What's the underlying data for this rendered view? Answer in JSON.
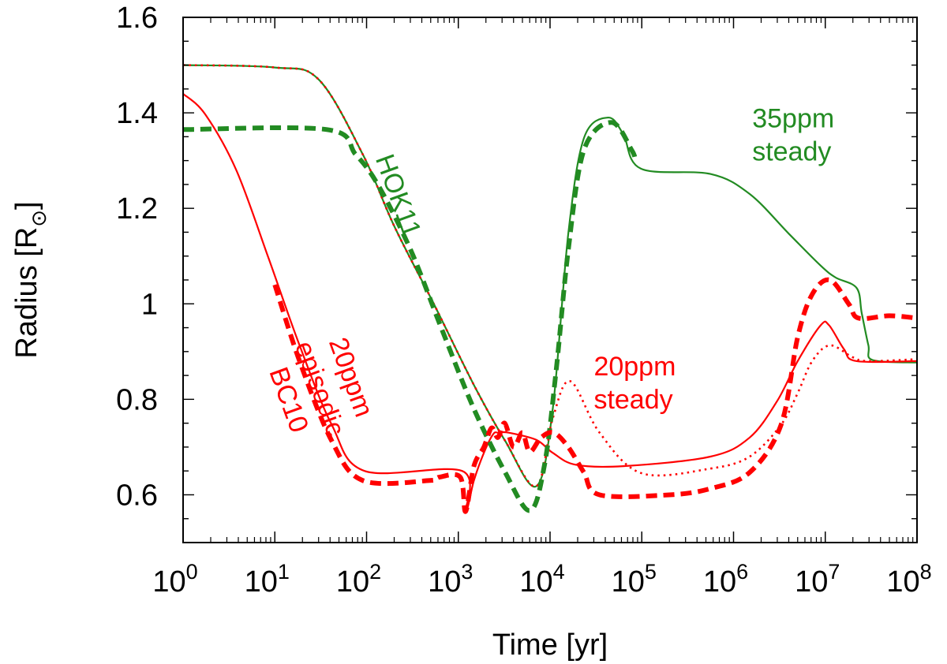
{
  "chart_data": {
    "type": "line",
    "title": "",
    "xlabel": "Time [yr]",
    "ylabel": "Radius [R",
    "ylabel_symbol": "⊙",
    "ylabel_close": "]",
    "xscale": "log",
    "xlim": [
      1,
      100000000.0
    ],
    "ylim": [
      0.5,
      1.6
    ],
    "grid": false,
    "legend": "none",
    "xticks": [
      1,
      10,
      100,
      1000,
      10000,
      100000,
      1000000,
      10000000,
      100000000
    ],
    "xtick_labels": [
      {
        "base": "10",
        "exp": "0"
      },
      {
        "base": "10",
        "exp": "1"
      },
      {
        "base": "10",
        "exp": "2"
      },
      {
        "base": "10",
        "exp": "3"
      },
      {
        "base": "10",
        "exp": "4"
      },
      {
        "base": "10",
        "exp": "5"
      },
      {
        "base": "10",
        "exp": "6"
      },
      {
        "base": "10",
        "exp": "7"
      },
      {
        "base": "10",
        "exp": "8"
      }
    ],
    "yticks": [
      0.6,
      0.8,
      1.0,
      1.2,
      1.4,
      1.6
    ],
    "ytick_labels": [
      "0.6",
      "0.8",
      "1",
      "1.2",
      "1.4",
      "1.6"
    ],
    "series": [
      {
        "style": "solid",
        "color": "#228b22",
        "x": [
          1,
          10,
          30,
          91,
          200,
          550,
          1480,
          3240,
          7080,
          10700.0,
          15800.0,
          23400.0,
          42700.0,
          63000.0,
          98000.0,
          560000.0,
          1500000.0,
          4000000.0,
          8900000.0,
          13000000.0,
          22000000.0,
          25000000.0,
          29500000.0,
          33000000.0,
          100000000.0
        ],
        "y": [
          1.5,
          1.495,
          1.47,
          1.313,
          1.163,
          0.997,
          0.83,
          0.713,
          0.618,
          0.78,
          1.147,
          1.347,
          1.39,
          1.355,
          1.283,
          1.272,
          1.23,
          1.147,
          1.08,
          1.055,
          1.033,
          0.98,
          0.913,
          0.882,
          0.877
        ]
      },
      {
        "style": "dotted",
        "color": "#ff0000",
        "x": [
          1,
          10,
          30,
          91,
          200,
          550,
          1480,
          3240,
          7080,
          10700.0,
          16600.0,
          34700.0,
          100000.0,
          560000.0,
          1500000.0,
          3300000.0,
          5000000.0,
          7200000.0,
          11200000.0,
          20000000.0,
          29500000.0,
          100000000.0
        ],
        "y": [
          1.5,
          1.495,
          1.47,
          1.313,
          1.163,
          0.997,
          0.83,
          0.713,
          0.618,
          0.76,
          0.838,
          0.73,
          0.645,
          0.655,
          0.68,
          0.747,
          0.813,
          0.88,
          0.913,
          0.888,
          0.88,
          0.884
        ]
      },
      {
        "style": "solid",
        "color": "#ff0000",
        "x": [
          1,
          1.74,
          3.8,
          8.5,
          18.6,
          41.7,
          95,
          1100,
          1200,
          1480,
          1900,
          2400,
          2750,
          3550,
          7080,
          10700.0,
          19000.0,
          63000.0,
          560000.0,
          1500000.0,
          3000000.0,
          5000000.0,
          8900000.0,
          11000000.0,
          16000000.0,
          22000000.0,
          100000000.0
        ],
        "y": [
          1.44,
          1.397,
          1.28,
          1.097,
          0.913,
          0.747,
          0.65,
          0.65,
          0.565,
          0.63,
          0.688,
          0.727,
          0.73,
          0.73,
          0.715,
          0.688,
          0.663,
          0.66,
          0.68,
          0.72,
          0.797,
          0.88,
          0.955,
          0.955,
          0.905,
          0.88,
          0.88
        ]
      },
      {
        "style": "dashed",
        "color": "#228b22",
        "x": [
          1,
          37,
          76,
          135,
          302,
          660,
          1480,
          3240,
          6030,
          8710,
          11700.0,
          15800.0,
          23400.0,
          46800.0,
          77600.0,
          85000.0
        ],
        "y": [
          1.365,
          1.365,
          1.313,
          1.247,
          1.113,
          0.947,
          0.78,
          0.647,
          0.567,
          0.663,
          0.863,
          1.113,
          1.322,
          1.38,
          1.322,
          1.3
        ]
      },
      {
        "style": "dashed",
        "color": "#ff0000",
        "x": [
          10,
          18.6,
          41.7,
          91,
          490,
          620,
          1050,
          1200,
          1480,
          1900,
          2300,
          2700,
          3200,
          4000,
          5000,
          6000,
          8000,
          11000.0,
          15800.0,
          23400.0,
          34700.0,
          200000.0,
          560000.0,
          1500000.0,
          3300000.0,
          5000000.0,
          7200000.0,
          11200000.0,
          18000000.0,
          23000000.0,
          50000000.0,
          100000000.0
        ],
        "y": [
          1.04,
          0.88,
          0.713,
          0.63,
          0.63,
          0.637,
          0.637,
          0.565,
          0.66,
          0.7,
          0.74,
          0.72,
          0.75,
          0.7,
          0.73,
          0.69,
          0.72,
          0.73,
          0.7,
          0.647,
          0.6,
          0.6,
          0.613,
          0.647,
          0.747,
          0.93,
          1.02,
          1.05,
          1.0,
          0.97,
          0.975,
          0.97
        ]
      }
    ],
    "annotations": [
      {
        "text": "HOK11",
        "color": "#228b22",
        "x": 180,
        "y": 1.22,
        "angle": 70
      },
      {
        "text": "20ppm",
        "color": "#ff0000",
        "x": 55,
        "y": 0.84,
        "angle": 70
      },
      {
        "text": "episodic",
        "color": "#ff0000",
        "x": 40,
        "y": 0.79,
        "angle": 70
      },
      {
        "text": "BC10",
        "color": "#ff0000",
        "x": 25,
        "y": 0.76,
        "angle": 70
      },
      {
        "text": "35ppm",
        "color": "#228b22",
        "x": 1600000.0,
        "y": 1.37,
        "angle": 0
      },
      {
        "text": "steady",
        "color": "#228b22",
        "x": 1600000.0,
        "y": 1.31,
        "angle": 0
      },
      {
        "text": "20ppm",
        "color": "#ff0000",
        "x": 30000.0,
        "y": 0.85,
        "angle": 0
      },
      {
        "text": "steady",
        "color": "#ff0000",
        "x": 30000.0,
        "y": 0.79,
        "angle": 0
      }
    ]
  }
}
